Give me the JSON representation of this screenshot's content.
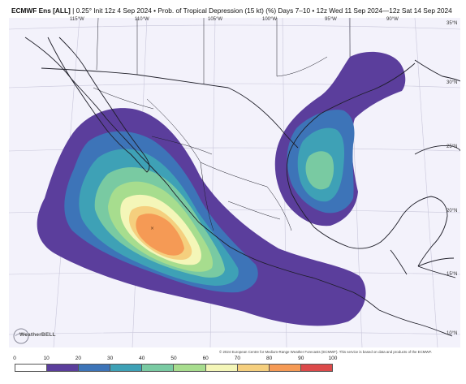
{
  "header": {
    "model": "ECMWF Ens [ALL]",
    "resolution": " | 0.25°",
    "init": "Init 12z 4 Sep 2024",
    "product": "Prob. of Tropical Depression (15 kt) (%) Days 7–10",
    "valid": "12z Wed 11 Sep 2024—12z Sat 14 Sep 2024",
    "separator": " • "
  },
  "longitude_labels": [
    "115°W",
    "110°W",
    "105°W",
    "100°W",
    "95°W",
    "90°W"
  ],
  "latitude_labels": [
    "35°N",
    "30°N",
    "25°N",
    "20°N",
    "15°N",
    "10°N"
  ],
  "copyright": "© 2024 European Centre for Medium-Range Weather Forecasts (ECMWF). This service is based on data and products of the ECMWF.",
  "logo": {
    "text": "WeatherBELL",
    "icon": "weatherbell-logo-icon"
  },
  "colorbar": {
    "ticks": [
      "0",
      "10",
      "20",
      "30",
      "40",
      "50",
      "60",
      "70",
      "80",
      "90",
      "100"
    ],
    "colors": [
      "#ffffff",
      "#5b3e9c",
      "#3d74b8",
      "#3ea1b6",
      "#79caa2",
      "#a7dd8e",
      "#f4f6b8",
      "#f5cf7e",
      "#f59a55",
      "#dc4a4a",
      "#96063d"
    ]
  },
  "map": {
    "background": "#f3f2fb",
    "grid_color": "#c8c6da",
    "border_color": "#1e1e28",
    "regions": [
      {
        "name": "Eastern Pacific off southwestern Mexico",
        "max_probability_percent": 75
      },
      {
        "name": "Western Gulf of Mexico",
        "max_probability_percent": 45
      }
    ]
  }
}
